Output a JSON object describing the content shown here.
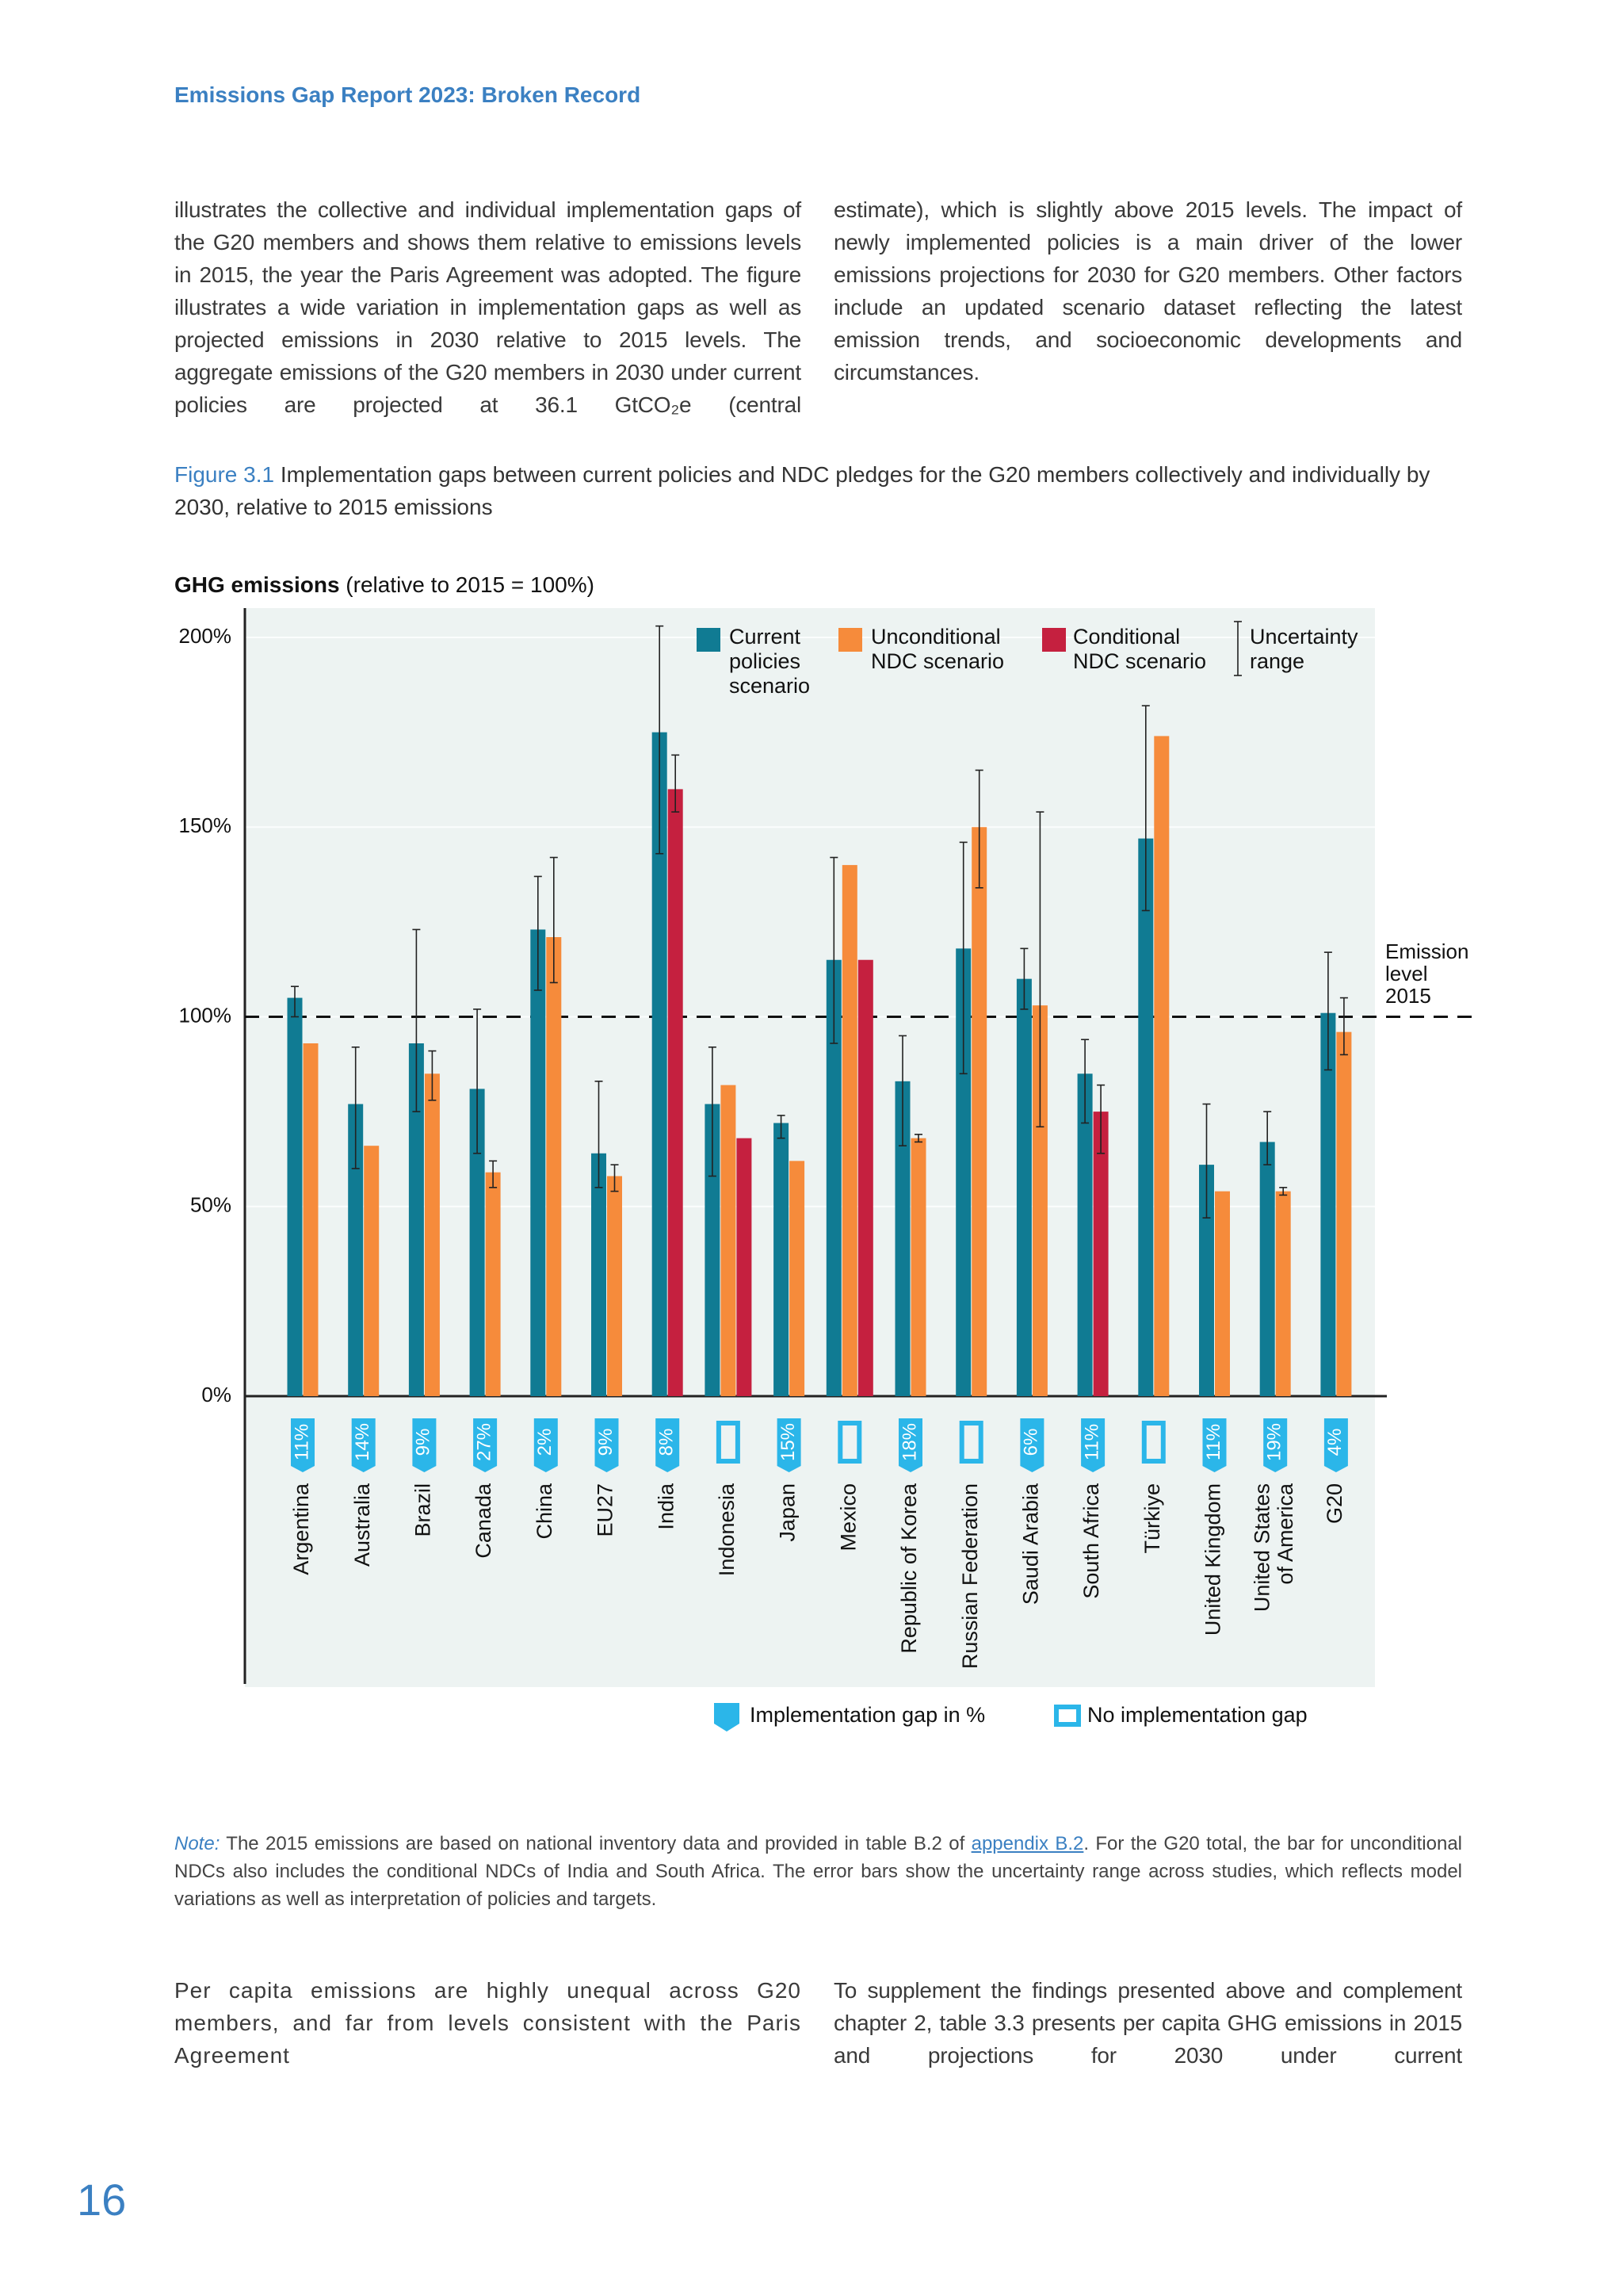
{
  "header": {
    "title": "Emissions Gap Report 2023: Broken Record"
  },
  "paragraphs_top": [
    "illustrates the collective and individual implementation gaps of the G20 members and shows them relative to emissions levels in 2015, the year the Paris Agreement was adopted. The figure illustrates a wide variation in implementation gaps as well as projected emissions in 2030 relative to 2015 levels. The aggregate emissions of the G20 members in 2030 under current policies are projected at 36.1 GtCO₂e (central",
    "estimate), which is slightly above 2015 levels. The impact of newly implemented policies is a main driver of the lower emissions projections for 2030 for G20 members. Other factors include an updated scenario dataset reflecting the latest emission trends, and socioeconomic developments and circumstances."
  ],
  "figure": {
    "number": "Figure 3.1",
    "caption": "Implementation gaps between current policies and NDC pledges for the G20 members collectively and individually by 2030, relative to 2015 emissions"
  },
  "chart_data": {
    "type": "bar",
    "y_label": {
      "bold": "GHG emissions",
      "text": "(relative to 2015 = 100%)"
    },
    "categories": [
      "Argentina",
      "Australia",
      "Brazil",
      "Canada",
      "China",
      "EU27",
      "India",
      "Indonesia",
      "Japan",
      "Mexico",
      "Republic of Korea",
      "Russian Federation",
      "Saudi Arabia",
      "South Africa",
      "Türkiye",
      "United Kingdom",
      "United States of America",
      "G20"
    ],
    "series": [
      {
        "name": "Current policies scenario",
        "color": "#107b93",
        "values": [
          105,
          77,
          93,
          81,
          123,
          64,
          175,
          77,
          72,
          115,
          83,
          118,
          110,
          85,
          147,
          61,
          67,
          101
        ],
        "errors": [
          [
            100,
            108
          ],
          [
            60,
            92
          ],
          [
            75,
            123
          ],
          [
            64,
            102
          ],
          [
            107,
            137
          ],
          [
            55,
            83
          ],
          [
            143,
            203
          ],
          [
            58,
            92
          ],
          [
            68,
            74
          ],
          [
            93,
            142
          ],
          [
            66,
            95
          ],
          [
            85,
            146
          ],
          [
            102,
            118
          ],
          [
            72,
            94
          ],
          [
            128,
            182
          ],
          [
            47,
            77
          ],
          [
            61,
            75
          ],
          [
            86,
            117
          ]
        ]
      },
      {
        "name": "Unconditional NDC scenario",
        "color": "#f68b3b",
        "values": [
          93,
          66,
          85,
          59,
          121,
          58,
          null,
          82,
          62,
          140,
          68,
          150,
          103,
          null,
          174,
          54,
          54,
          96
        ],
        "errors": [
          null,
          null,
          [
            78,
            91
          ],
          [
            55,
            62
          ],
          [
            109,
            142
          ],
          [
            54,
            61
          ],
          null,
          null,
          null,
          null,
          [
            67,
            69
          ],
          [
            134,
            165
          ],
          [
            71,
            154
          ],
          null,
          null,
          null,
          [
            53,
            55
          ],
          [
            90,
            105
          ]
        ]
      },
      {
        "name": "Conditional NDC scenario",
        "color": "#c5203f",
        "values": [
          null,
          null,
          null,
          null,
          null,
          null,
          160,
          68,
          null,
          115,
          null,
          null,
          null,
          75,
          null,
          null,
          null,
          null
        ],
        "errors": [
          null,
          null,
          null,
          null,
          null,
          null,
          [
            154,
            169
          ],
          null,
          null,
          null,
          null,
          null,
          null,
          [
            64,
            82
          ],
          null,
          null,
          null,
          null
        ]
      }
    ],
    "uncertainty_label": "Uncertainty range",
    "ylim": [
      0,
      200
    ],
    "yticks": [
      {
        "value": 0,
        "label": "0%"
      },
      {
        "value": 50,
        "label": "50%"
      },
      {
        "value": 100,
        "label": "100%"
      },
      {
        "value": 150,
        "label": "150%"
      },
      {
        "value": 200,
        "label": "200%"
      }
    ],
    "grid": true,
    "reference_line": {
      "value": 100,
      "label": "Emission level 2015"
    },
    "gaps": {
      "values": [
        11,
        14,
        9,
        27,
        2,
        9,
        8,
        null,
        15,
        null,
        18,
        null,
        6,
        11,
        null,
        11,
        19,
        4
      ],
      "value_labels": [
        "11%",
        "14%",
        "9%",
        "27%",
        "2%",
        "9%",
        "8%",
        null,
        "15%",
        null,
        "18%",
        null,
        "6%",
        "11%",
        null,
        "11%",
        "19%",
        "4%"
      ],
      "color": "#2bb6e9"
    },
    "gap_legend": [
      "Implementation gap in %",
      "No implementation gap"
    ]
  },
  "note": {
    "label": "Note:",
    "text_before": "The 2015 emissions are based on national inventory data and provided in table B.2 of",
    "link": "appendix B.2",
    "text_after": ". For the G20 total, the bar for unconditional NDCs also includes the conditional NDCs of India and South Africa. The error bars show the uncertainty range across studies, which reflects model variations as well as interpretation of policies and targets."
  },
  "paragraphs_bottom": [
    "Per capita emissions are highly unequal across G20 members, and far from levels consistent with the Paris Agreement",
    "To supplement the findings presented above and complement chapter 2, table 3.3 presents per capita GHG emissions in 2015 and projections for 2030 under current"
  ],
  "page_number": "16"
}
